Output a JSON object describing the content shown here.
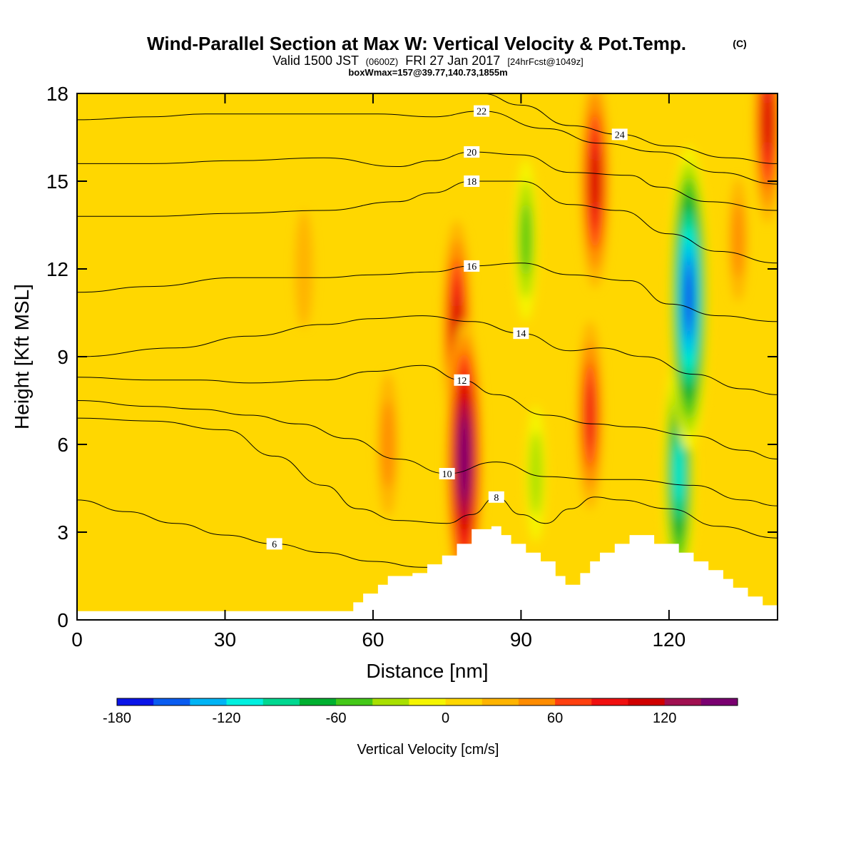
{
  "header": {
    "title": "Wind-Parallel Section at Max W: Vertical Velocity & Pot.Temp.",
    "copyright": "(C)",
    "valid_main": "Valid 1500 JST",
    "valid_utc": "(0600Z)",
    "valid_date": "FRI 27 Jan 2017",
    "forecast": "[24hrFcst@1049z]",
    "boxwmax": "boxWmax=157@39.77,140.73,1855m"
  },
  "chart_data": {
    "type": "heatmap",
    "xlabel": "Distance [nm]",
    "ylabel": "Height [Kft MSL]",
    "xlim": [
      0,
      142
    ],
    "ylim": [
      0,
      18
    ],
    "x_ticks": [
      0,
      30,
      60,
      90,
      120
    ],
    "y_ticks": [
      0,
      3,
      6,
      9,
      12,
      15,
      18
    ],
    "colorbar": {
      "label": "Vertical Velocity [cm/s]",
      "min": -180,
      "max": 160,
      "step": 20,
      "tick_values": [
        -180,
        -120,
        -60,
        0,
        60,
        120
      ],
      "tick_labels": [
        "-180",
        "-120",
        "-60",
        "0",
        "60",
        "120"
      ],
      "colors": [
        "#0a14e8",
        "#0a5cf0",
        "#00b4f5",
        "#00f0e0",
        "#00d890",
        "#00b030",
        "#44c818",
        "#a8e000",
        "#f5f500",
        "#ffd700",
        "#ffb400",
        "#ff8c00",
        "#ff4010",
        "#f01010",
        "#d00000",
        "#a01050",
        "#7a0070"
      ]
    },
    "vertical_velocity_cores": [
      {
        "x": 78.5,
        "y": 5.5,
        "value": 150
      },
      {
        "x": 77,
        "y": 10,
        "value": 100
      },
      {
        "x": 105,
        "y": 15,
        "value": 100
      },
      {
        "x": 104,
        "y": 7,
        "value": 80
      },
      {
        "x": 63,
        "y": 6,
        "value": 45
      },
      {
        "x": 46,
        "y": 12,
        "value": 25
      },
      {
        "x": 91,
        "y": 13,
        "value": -60
      },
      {
        "x": 93,
        "y": 5,
        "value": -40
      },
      {
        "x": 124,
        "y": 11,
        "value": -170
      },
      {
        "x": 122,
        "y": 5,
        "value": -120
      },
      {
        "x": 134,
        "y": 13,
        "value": 30
      },
      {
        "x": 140,
        "y": 17,
        "value": 90
      }
    ],
    "terrain": [
      [
        0,
        0.3
      ],
      [
        55,
        0.3
      ],
      [
        56,
        0.6
      ],
      [
        58,
        0.9
      ],
      [
        61,
        1.2
      ],
      [
        63,
        1.5
      ],
      [
        68,
        1.6
      ],
      [
        71,
        1.9
      ],
      [
        74,
        2.2
      ],
      [
        77,
        2.6
      ],
      [
        80,
        3.1
      ],
      [
        84,
        3.2
      ],
      [
        86,
        2.9
      ],
      [
        88,
        2.6
      ],
      [
        91,
        2.3
      ],
      [
        94,
        2.0
      ],
      [
        97,
        1.5
      ],
      [
        99,
        1.2
      ],
      [
        102,
        1.6
      ],
      [
        104,
        2.0
      ],
      [
        106,
        2.3
      ],
      [
        109,
        2.6
      ],
      [
        112,
        2.9
      ],
      [
        117,
        2.6
      ],
      [
        122,
        2.3
      ],
      [
        125,
        2.0
      ],
      [
        128,
        1.7
      ],
      [
        131,
        1.4
      ],
      [
        133,
        1.1
      ],
      [
        136,
        0.8
      ],
      [
        139,
        0.5
      ],
      [
        142,
        0.3
      ]
    ],
    "theta_contours": [
      {
        "label": "6",
        "points": [
          [
            0,
            4.1
          ],
          [
            10,
            3.7
          ],
          [
            20,
            3.3
          ],
          [
            30,
            2.9
          ],
          [
            40,
            2.6
          ],
          [
            50,
            2.3
          ],
          [
            60,
            2.0
          ],
          [
            70,
            1.8
          ],
          [
            80,
            1.7
          ]
        ]
      },
      {
        "label": "8",
        "points": [
          [
            0,
            6.9
          ],
          [
            15,
            6.8
          ],
          [
            30,
            6.5
          ],
          [
            40,
            5.6
          ],
          [
            50,
            4.6
          ],
          [
            57,
            3.8
          ],
          [
            65,
            3.4
          ],
          [
            75,
            3.3
          ],
          [
            80,
            3.6
          ],
          [
            85,
            4.2
          ],
          [
            90,
            3.6
          ],
          [
            95,
            3.3
          ],
          [
            100,
            3.8
          ],
          [
            105,
            4.2
          ],
          [
            110,
            4.1
          ],
          [
            120,
            3.8
          ],
          [
            130,
            3.2
          ],
          [
            142,
            2.8
          ]
        ]
      },
      {
        "label": "10",
        "points": [
          [
            0,
            7.5
          ],
          [
            15,
            7.3
          ],
          [
            25,
            7.2
          ],
          [
            35,
            7.0
          ],
          [
            45,
            6.7
          ],
          [
            55,
            6.2
          ],
          [
            65,
            5.5
          ],
          [
            75,
            5.0
          ],
          [
            85,
            5.4
          ],
          [
            95,
            4.9
          ],
          [
            105,
            4.8
          ],
          [
            112,
            4.8
          ],
          [
            125,
            4.6
          ],
          [
            135,
            4.1
          ],
          [
            142,
            3.9
          ]
        ]
      },
      {
        "label": "12",
        "points": [
          [
            0,
            8.3
          ],
          [
            15,
            8.2
          ],
          [
            25,
            8.2
          ],
          [
            35,
            8.1
          ],
          [
            50,
            8.2
          ],
          [
            60,
            8.5
          ],
          [
            70,
            8.7
          ],
          [
            78,
            8.2
          ],
          [
            85,
            7.7
          ],
          [
            95,
            7.0
          ],
          [
            105,
            6.7
          ],
          [
            112,
            6.6
          ],
          [
            125,
            6.3
          ],
          [
            135,
            5.8
          ],
          [
            142,
            5.5
          ]
        ]
      },
      {
        "label": "14",
        "points": [
          [
            0,
            9.0
          ],
          [
            20,
            9.3
          ],
          [
            35,
            9.7
          ],
          [
            50,
            10.1
          ],
          [
            60,
            10.3
          ],
          [
            70,
            10.4
          ],
          [
            80,
            10.2
          ],
          [
            90,
            9.8
          ],
          [
            100,
            9.2
          ],
          [
            106,
            9.3
          ],
          [
            115,
            9.0
          ],
          [
            125,
            8.4
          ],
          [
            135,
            7.9
          ],
          [
            142,
            7.7
          ]
        ]
      },
      {
        "label": "16",
        "points": [
          [
            0,
            11.2
          ],
          [
            15,
            11.4
          ],
          [
            32,
            11.7
          ],
          [
            50,
            11.7
          ],
          [
            60,
            11.8
          ],
          [
            72,
            11.9
          ],
          [
            80,
            12.1
          ],
          [
            90,
            12.2
          ],
          [
            100,
            11.8
          ],
          [
            112,
            11.6
          ],
          [
            120,
            10.8
          ],
          [
            130,
            10.4
          ],
          [
            142,
            10.2
          ]
        ]
      },
      {
        "label": "18",
        "points": [
          [
            0,
            13.8
          ],
          [
            15,
            13.8
          ],
          [
            32,
            13.9
          ],
          [
            50,
            14.0
          ],
          [
            65,
            14.3
          ],
          [
            72,
            14.6
          ],
          [
            80,
            15.0
          ],
          [
            90,
            15.0
          ],
          [
            100,
            14.2
          ],
          [
            110,
            14.0
          ],
          [
            120,
            13.2
          ],
          [
            130,
            12.6
          ],
          [
            142,
            12.2
          ]
        ]
      },
      {
        "label": "20",
        "points": [
          [
            0,
            15.6
          ],
          [
            15,
            15.6
          ],
          [
            32,
            15.7
          ],
          [
            50,
            15.8
          ],
          [
            65,
            15.5
          ],
          [
            72,
            15.7
          ],
          [
            80,
            16.0
          ],
          [
            90,
            15.9
          ],
          [
            100,
            15.3
          ],
          [
            112,
            15.2
          ],
          [
            118,
            14.8
          ],
          [
            128,
            14.3
          ],
          [
            142,
            14.0
          ]
        ]
      },
      {
        "label": "22",
        "points": [
          [
            0,
            17.1
          ],
          [
            15,
            17.2
          ],
          [
            26,
            17.3
          ],
          [
            50,
            17.3
          ],
          [
            61,
            17.3
          ],
          [
            72,
            17.2
          ],
          [
            82,
            17.4
          ],
          [
            95,
            16.8
          ],
          [
            106,
            16.3
          ],
          [
            118,
            16.0
          ],
          [
            130,
            15.3
          ],
          [
            142,
            14.9
          ]
        ]
      },
      {
        "label": "24",
        "points": [
          [
            82,
            18.0
          ],
          [
            90,
            17.6
          ],
          [
            100,
            16.9
          ],
          [
            110,
            16.6
          ],
          [
            120,
            16.2
          ],
          [
            132,
            15.8
          ],
          [
            142,
            15.6
          ]
        ]
      }
    ]
  }
}
